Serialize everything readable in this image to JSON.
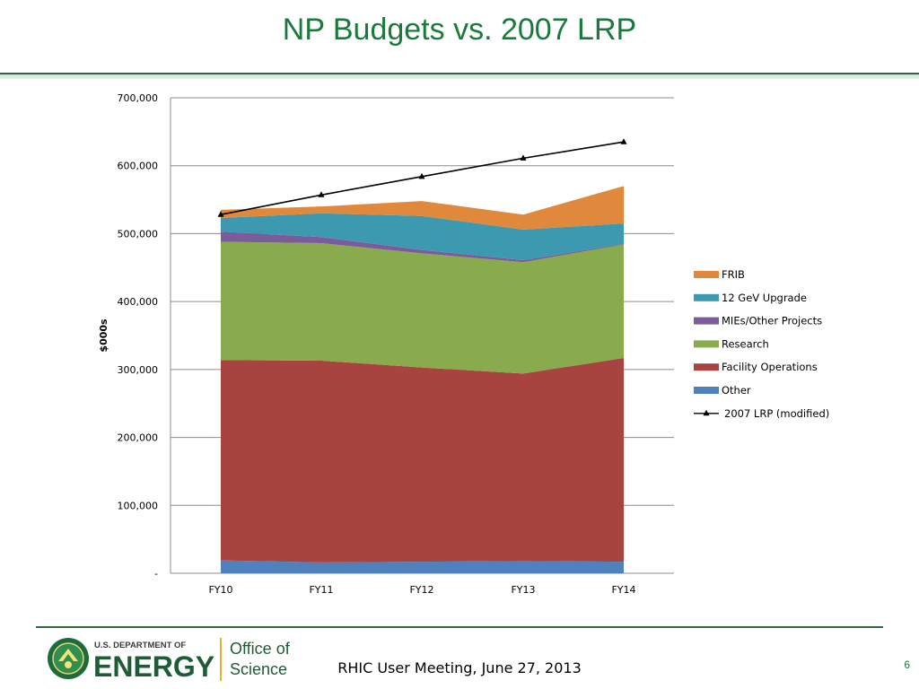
{
  "slide": {
    "title": "NP Budgets vs. 2007 LRP",
    "footer": "RHIC User Meeting, June 27, 2013",
    "page_number": "6"
  },
  "logo": {
    "department_line": "U.S. DEPARTMENT OF",
    "energy_word": "ENERGY",
    "office_line1": "Office of",
    "office_line2": "Science"
  },
  "colors": {
    "title": "#1a7a3c",
    "other": "#4f81bd",
    "facility_operations": "#a8443f",
    "research": "#8aaa4e",
    "mies_other_projects": "#7a5c9a",
    "12_gev_upgrade": "#3c99b0",
    "frib": "#e0883b",
    "lrp_line": "#000000"
  },
  "chart_data": {
    "type": "area",
    "stacked": true,
    "categories": [
      "FY10",
      "FY11",
      "FY12",
      "FY13",
      "FY14"
    ],
    "ylabel": "$000s",
    "xlabel": "",
    "ylim": [
      0,
      700000
    ],
    "yticks": [
      {
        "value": 0,
        "label": "-"
      },
      {
        "value": 100000,
        "label": "100,000"
      },
      {
        "value": 200000,
        "label": "200,000"
      },
      {
        "value": 300000,
        "label": "300,000"
      },
      {
        "value": 400000,
        "label": "400,000"
      },
      {
        "value": 500000,
        "label": "500,000"
      },
      {
        "value": 600000,
        "label": "600,000"
      },
      {
        "value": 700000,
        "label": "700,000"
      }
    ],
    "grid": true,
    "legend_position": "right",
    "series": [
      {
        "name": "Other",
        "key": "other",
        "values": [
          19000,
          16000,
          17000,
          18000,
          17000
        ]
      },
      {
        "name": "Facility Operations",
        "key": "facility_operations",
        "values": [
          295000,
          297000,
          286000,
          276000,
          300000
        ]
      },
      {
        "name": "Research",
        "key": "research",
        "values": [
          174000,
          173000,
          168000,
          164000,
          167000
        ]
      },
      {
        "name": "MIEs/Other Projects",
        "key": "mies_other_projects",
        "values": [
          15000,
          9000,
          5000,
          3000,
          1000
        ]
      },
      {
        "name": "12 GeV Upgrade",
        "key": "12_gev_upgrade",
        "values": [
          20000,
          35000,
          50000,
          45000,
          30000
        ]
      },
      {
        "name": "FRIB",
        "key": "frib",
        "values": [
          12000,
          10000,
          22000,
          22000,
          55000
        ]
      }
    ],
    "line_series": {
      "name": "2007 LRP (modified)",
      "key": "lrp_line",
      "marker": "triangle",
      "values": [
        528000,
        557000,
        584000,
        611000,
        635000
      ]
    },
    "legend_order": [
      "FRIB",
      "12 GeV Upgrade",
      "MIEs/Other Projects",
      "Research",
      "Facility Operations",
      "Other",
      "2007 LRP (modified)"
    ]
  }
}
